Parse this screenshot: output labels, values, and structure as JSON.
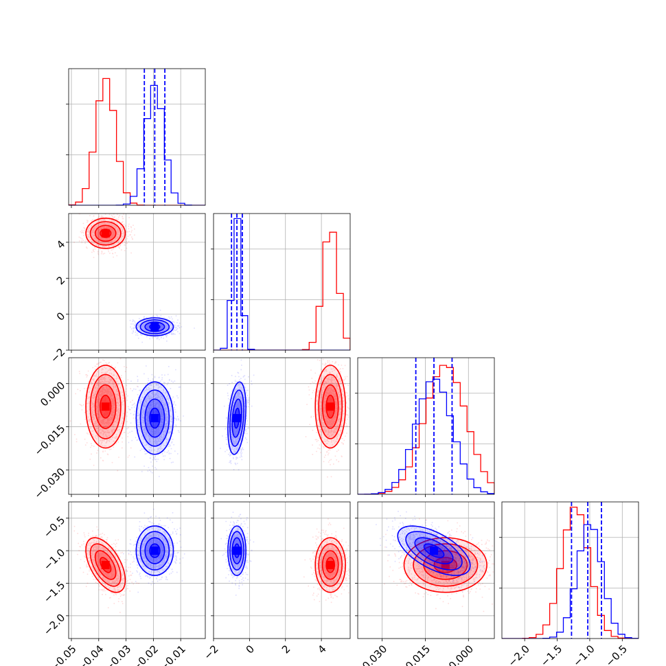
{
  "colors": {
    "red": "#ff0000",
    "blue": "#0000ff",
    "grid": "#b0b0b0"
  },
  "chart_data": {
    "type": "corner",
    "grid": true,
    "params": [
      {
        "range": [
          -0.051,
          -0.001
        ],
        "ticks": [
          -0.05,
          -0.04,
          -0.03,
          -0.02,
          -0.01
        ],
        "tick_labels": [
          "−0.05",
          "−0.04",
          "−0.03",
          "−0.02",
          "−0.01"
        ]
      },
      {
        "range": [
          -2.0,
          5.6
        ],
        "ticks": [
          -2,
          0,
          2,
          4
        ],
        "tick_labels": [
          "−2",
          "0",
          "2",
          "4"
        ]
      },
      {
        "range": [
          -0.0385,
          0.009
        ],
        "ticks": [
          -0.03,
          -0.015,
          0.0
        ],
        "tick_labels": [
          "−0.030",
          "−0.015",
          "0.000"
        ]
      },
      {
        "range": [
          -2.35,
          -0.25
        ],
        "ticks": [
          -2.0,
          -1.5,
          -1.0,
          -0.5
        ],
        "tick_labels": [
          "−2.0",
          "−1.5",
          "−1.0",
          "−0.5"
        ]
      }
    ],
    "series": [
      {
        "color": "#ff0000",
        "mean": [
          -0.0375,
          4.5,
          -0.008,
          -1.22
        ],
        "std": [
          0.0036,
          0.42,
          0.0072,
          0.21
        ],
        "corr": [
          [
            0,
            3,
            -0.55
          ]
        ],
        "hist_peaks": [
          0.93,
          0.92,
          0.95,
          0.97
        ],
        "quantiles": null
      },
      {
        "color": "#0000ff",
        "mean": [
          -0.0195,
          -0.7,
          -0.012,
          -1.0
        ],
        "std": [
          0.0034,
          0.25,
          0.0063,
          0.19
        ],
        "corr": [
          [
            0,
            3,
            0.0
          ],
          [
            2,
            3,
            -0.6
          ],
          [
            1,
            2,
            0.3
          ]
        ],
        "hist_peaks": [
          0.88,
          0.97,
          0.85,
          0.85
        ],
        "quantiles": [
          [
            -0.0233,
            -0.0195,
            -0.0158
          ],
          [
            -1.0,
            -0.7,
            -0.4
          ],
          [
            -0.0183,
            -0.012,
            -0.0057
          ],
          [
            -1.28,
            -1.03,
            -0.82
          ]
        ]
      }
    ]
  }
}
